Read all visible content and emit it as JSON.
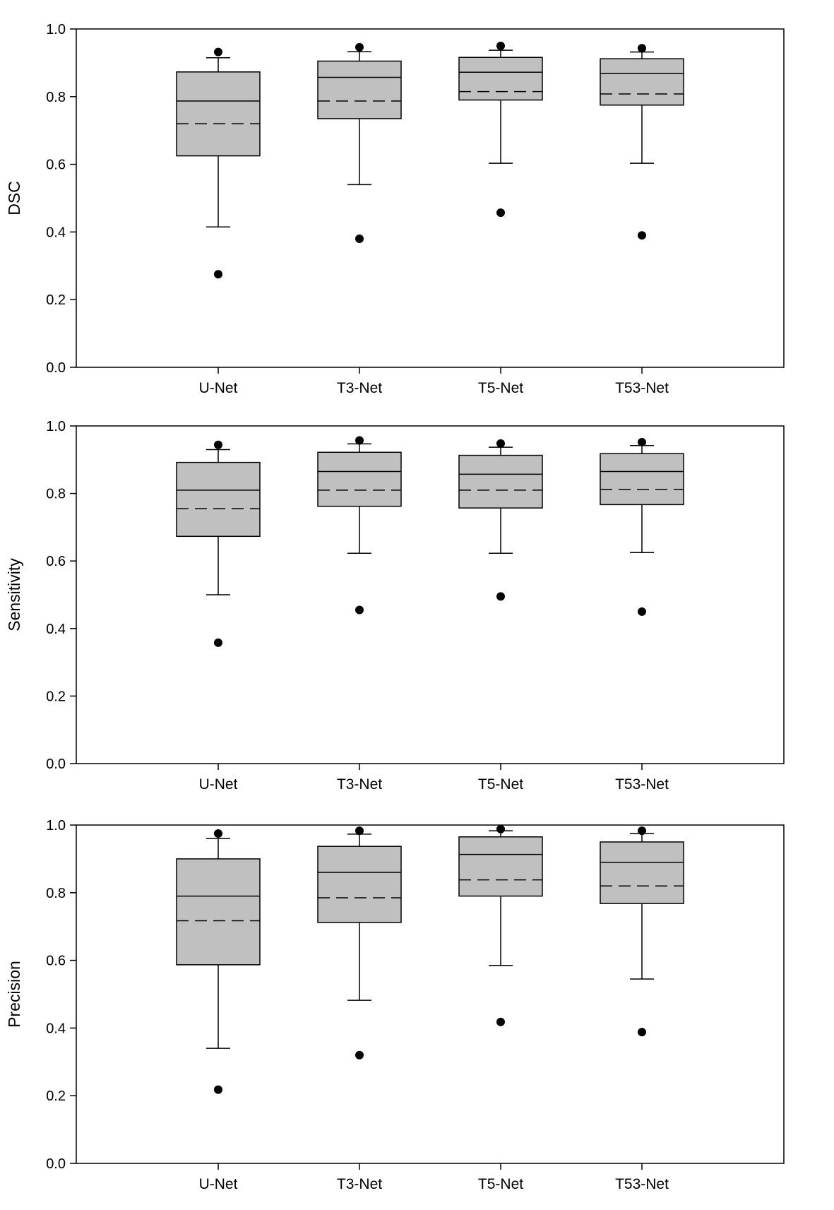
{
  "chart_data": [
    {
      "type": "box",
      "ylabel": "DSC",
      "ylim": [
        0,
        1
      ],
      "yticks": [
        "0.0",
        "0.2",
        "0.4",
        "0.6",
        "0.8",
        "1.0"
      ],
      "categories": [
        "U-Net",
        "T3-Net",
        "T5-Net",
        "T53-Net"
      ],
      "boxes": [
        {
          "whisker_low": 0.415,
          "q1": 0.625,
          "median": 0.787,
          "mean": 0.72,
          "q3": 0.873,
          "whisker_high": 0.915,
          "outliers": [
            0.275,
            0.932
          ]
        },
        {
          "whisker_low": 0.54,
          "q1": 0.735,
          "median": 0.857,
          "mean": 0.787,
          "q3": 0.905,
          "whisker_high": 0.933,
          "outliers": [
            0.38,
            0.946
          ]
        },
        {
          "whisker_low": 0.603,
          "q1": 0.79,
          "median": 0.872,
          "mean": 0.815,
          "q3": 0.916,
          "whisker_high": 0.937,
          "outliers": [
            0.457,
            0.95
          ]
        },
        {
          "whisker_low": 0.603,
          "q1": 0.775,
          "median": 0.868,
          "mean": 0.808,
          "q3": 0.912,
          "whisker_high": 0.932,
          "outliers": [
            0.39,
            0.943
          ]
        }
      ]
    },
    {
      "type": "box",
      "ylabel": "Sensitivity",
      "ylim": [
        0,
        1
      ],
      "yticks": [
        "0.0",
        "0.2",
        "0.4",
        "0.6",
        "0.8",
        "1.0"
      ],
      "categories": [
        "U-Net",
        "T3-Net",
        "T5-Net",
        "T53-Net"
      ],
      "boxes": [
        {
          "whisker_low": 0.5,
          "q1": 0.673,
          "median": 0.81,
          "mean": 0.755,
          "q3": 0.892,
          "whisker_high": 0.93,
          "outliers": [
            0.358,
            0.944
          ]
        },
        {
          "whisker_low": 0.623,
          "q1": 0.762,
          "median": 0.865,
          "mean": 0.81,
          "q3": 0.922,
          "whisker_high": 0.947,
          "outliers": [
            0.455,
            0.957
          ]
        },
        {
          "whisker_low": 0.623,
          "q1": 0.757,
          "median": 0.857,
          "mean": 0.81,
          "q3": 0.913,
          "whisker_high": 0.937,
          "outliers": [
            0.495,
            0.948
          ]
        },
        {
          "whisker_low": 0.625,
          "q1": 0.767,
          "median": 0.865,
          "mean": 0.812,
          "q3": 0.918,
          "whisker_high": 0.942,
          "outliers": [
            0.45,
            0.952
          ]
        }
      ]
    },
    {
      "type": "box",
      "ylabel": "Precision",
      "ylim": [
        0,
        1
      ],
      "yticks": [
        "0.0",
        "0.2",
        "0.4",
        "0.6",
        "0.8",
        "1.0"
      ],
      "categories": [
        "U-Net",
        "T3-Net",
        "T5-Net",
        "T53-Net"
      ],
      "boxes": [
        {
          "whisker_low": 0.34,
          "q1": 0.587,
          "median": 0.79,
          "mean": 0.717,
          "q3": 0.9,
          "whisker_high": 0.96,
          "outliers": [
            0.218,
            0.975
          ]
        },
        {
          "whisker_low": 0.482,
          "q1": 0.712,
          "median": 0.86,
          "mean": 0.785,
          "q3": 0.937,
          "whisker_high": 0.973,
          "outliers": [
            0.32,
            0.983
          ]
        },
        {
          "whisker_low": 0.585,
          "q1": 0.79,
          "median": 0.913,
          "mean": 0.838,
          "q3": 0.965,
          "whisker_high": 0.983,
          "outliers": [
            0.418,
            0.988
          ]
        },
        {
          "whisker_low": 0.545,
          "q1": 0.768,
          "median": 0.89,
          "mean": 0.82,
          "q3": 0.95,
          "whisker_high": 0.975,
          "outliers": [
            0.388,
            0.983
          ]
        }
      ]
    }
  ]
}
